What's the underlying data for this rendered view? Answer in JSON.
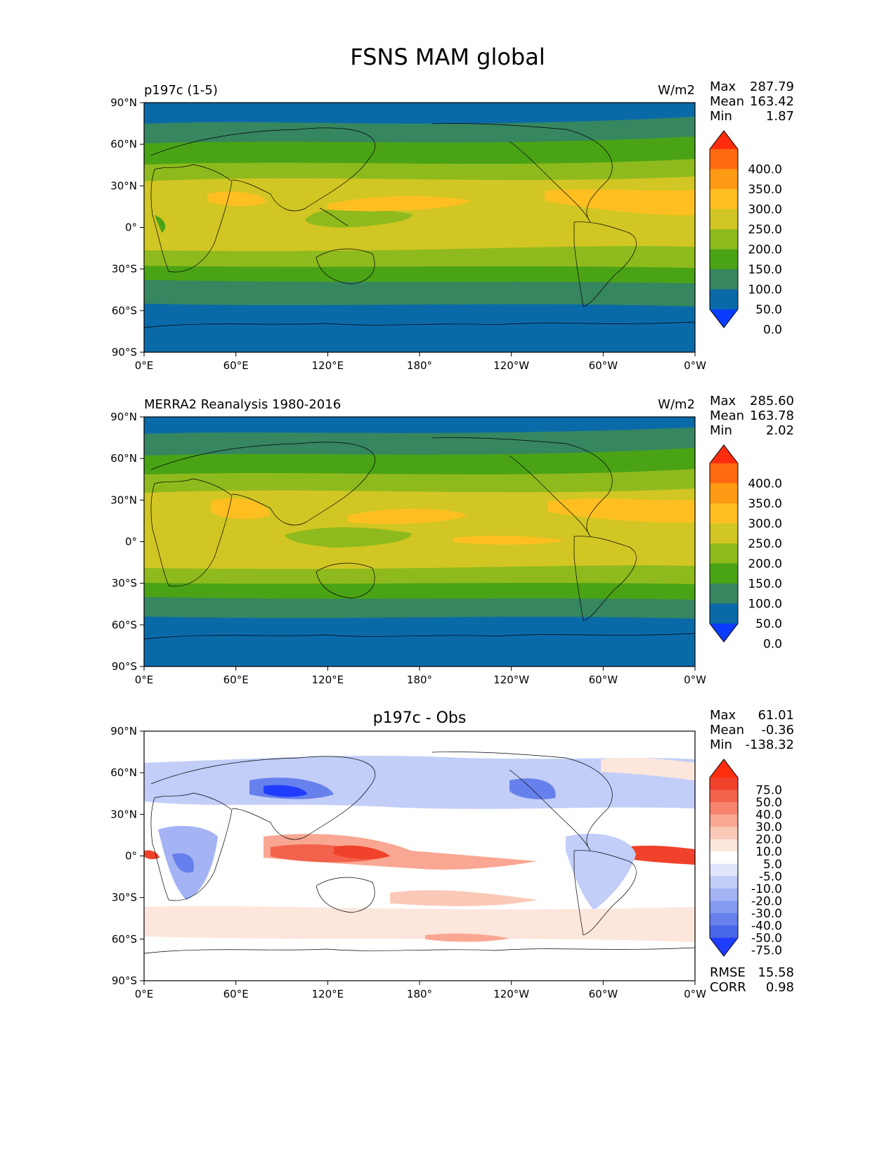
{
  "figure_title": "FSNS MAM global",
  "lat_ticks": [
    "90°N",
    "60°N",
    "30°N",
    "0°",
    "30°S",
    "60°S",
    "90°S"
  ],
  "lon_ticks": [
    "0°E",
    "60°E",
    "120°E",
    "180°",
    "120°W",
    "60°W",
    "0°W"
  ],
  "panels": [
    {
      "title_left": "p197c (1-5)",
      "title_center": "",
      "units": "W/m2",
      "stats": {
        "max_label": "Max",
        "max": "287.79",
        "mean_label": "Mean",
        "mean": "163.42",
        "min_label": "Min",
        "min": "1.87"
      },
      "colorbar": {
        "labels": [
          "400.0",
          "350.0",
          "300.0",
          "250.0",
          "200.0",
          "150.0",
          "100.0",
          "50.0",
          "0.0"
        ],
        "colors": [
          "#ff2d0d",
          "#ff6a10",
          "#ff9a14",
          "#ffbf21",
          "#d1c623",
          "#8fba1d",
          "#4aa315",
          "#368660",
          "#0a6aa8",
          "#0a3cff"
        ]
      },
      "bottom_stats": null
    },
    {
      "title_left": "MERRA2 Reanalysis 1980-2016",
      "title_center": "",
      "units": "W/m2",
      "stats": {
        "max_label": "Max",
        "max": "285.60",
        "mean_label": "Mean",
        "mean": "163.78",
        "min_label": "Min",
        "min": "2.02"
      },
      "colorbar": {
        "labels": [
          "400.0",
          "350.0",
          "300.0",
          "250.0",
          "200.0",
          "150.0",
          "100.0",
          "50.0",
          "0.0"
        ],
        "colors": [
          "#ff2d0d",
          "#ff6a10",
          "#ff9a14",
          "#ffbf21",
          "#d1c623",
          "#8fba1d",
          "#4aa315",
          "#368660",
          "#0a6aa8",
          "#0a3cff"
        ]
      },
      "bottom_stats": null
    },
    {
      "title_left": "",
      "title_center": "p197c - Obs",
      "units": "",
      "stats": {
        "max_label": "Max",
        "max": "61.01",
        "mean_label": "Mean",
        "mean": "-0.36",
        "min_label": "Min",
        "min": "-138.32"
      },
      "colorbar": {
        "labels": [
          "75.0",
          "50.0",
          "40.0",
          "30.0",
          "20.0",
          "10.0",
          "5.0",
          "-5.0",
          "-10.0",
          "-20.0",
          "-30.0",
          "-40.0",
          "-50.0",
          "-75.0"
        ],
        "colors": [
          "#ff2d0d",
          "#f0412a",
          "#f3624c",
          "#f6846f",
          "#f9a793",
          "#fbc9b8",
          "#fde6dc",
          "#ffffff",
          "#e0e6fb",
          "#c2cdf8",
          "#a3b3f4",
          "#8599f0",
          "#6680ec",
          "#4866e8",
          "#1f3cff"
        ]
      },
      "bottom_stats": {
        "rmse_label": "RMSE",
        "rmse": "15.58",
        "corr_label": "CORR",
        "corr": "0.98"
      }
    }
  ]
}
